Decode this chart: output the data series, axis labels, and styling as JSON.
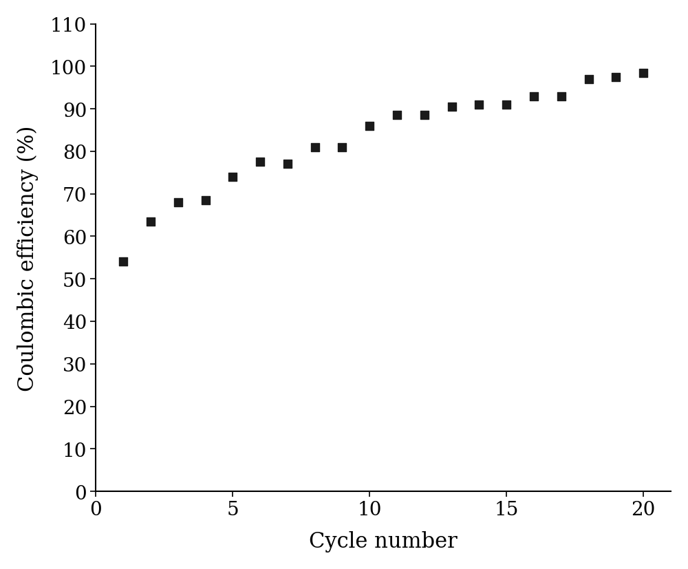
{
  "x": [
    1,
    2,
    3,
    4,
    5,
    6,
    7,
    8,
    9,
    10,
    11,
    12,
    13,
    14,
    15,
    16,
    17,
    18,
    19,
    20
  ],
  "y": [
    54,
    63.5,
    68,
    68.5,
    74,
    77.5,
    77,
    81,
    81,
    86,
    88.5,
    88.5,
    90.5,
    91,
    91,
    93,
    93,
    97,
    97.5,
    98.5
  ],
  "xlabel": "Cycle number",
  "ylabel": "Coulombic efficiency (%)",
  "xlim": [
    0,
    21
  ],
  "ylim": [
    0,
    110
  ],
  "xticks": [
    0,
    5,
    10,
    15,
    20
  ],
  "yticks": [
    0,
    10,
    20,
    30,
    40,
    50,
    60,
    70,
    80,
    90,
    100,
    110
  ],
  "marker": "s",
  "marker_color": "#1a1a1a",
  "marker_size": 9,
  "background_color": "#ffffff",
  "xlabel_fontsize": 22,
  "ylabel_fontsize": 22,
  "tick_fontsize": 20,
  "font_family": "DejaVu Serif"
}
